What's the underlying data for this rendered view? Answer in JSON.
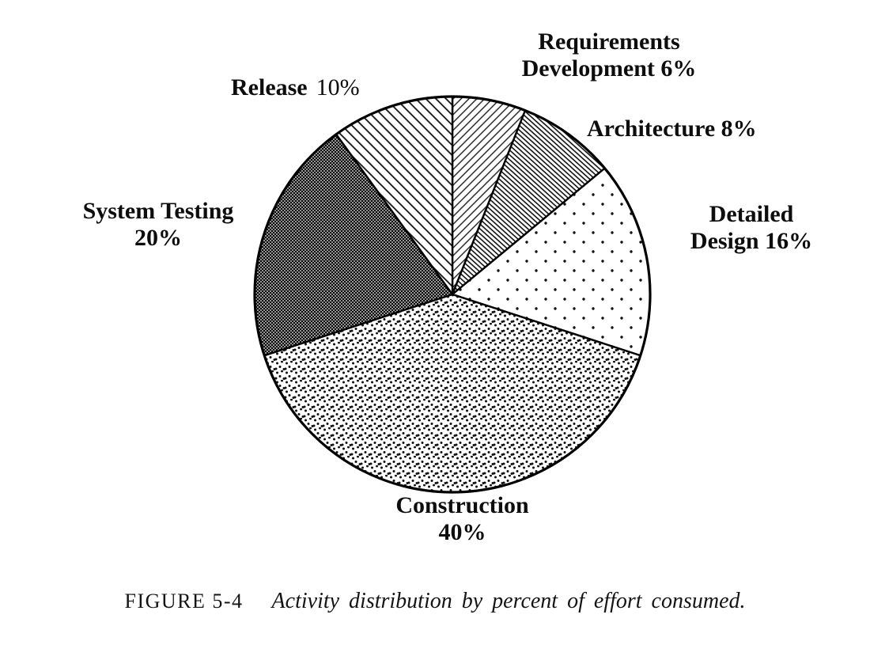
{
  "chart_data": {
    "type": "pie",
    "title": "Activity distribution by percent of effort consumed",
    "total": 100,
    "start_angle_deg": 0,
    "direction": "clockwise",
    "legend_position": "outside-labels",
    "segments": [
      {
        "label": "Requirements Development",
        "value": 6,
        "pattern": "diagonal-thin"
      },
      {
        "label": "Architecture",
        "value": 8,
        "pattern": "diagonal-dense"
      },
      {
        "label": "Detailed Design",
        "value": 16,
        "pattern": "dots-sparse"
      },
      {
        "label": "Construction",
        "value": 40,
        "pattern": "dots-dense"
      },
      {
        "label": "System Testing",
        "value": 20,
        "pattern": "crosshatch-dark"
      },
      {
        "label": "Release",
        "value": 10,
        "pattern": "diagonal-wide"
      }
    ]
  },
  "labels": {
    "requirements_line1": "Requirements",
    "requirements_line2": "Development 6%",
    "architecture": "Architecture 8%",
    "detailed_line1": "Detailed",
    "detailed_line2": "Design 16%",
    "construction_line1": "Construction",
    "construction_line2": "40%",
    "system_line1": "System Testing",
    "system_line2": "20%",
    "release_name": "Release",
    "release_value": "10%"
  },
  "caption": {
    "figure": "FIGURE 5-4",
    "text": "Activity distribution by percent of effort consumed."
  },
  "colors": {
    "ink": "#111111",
    "background": "#ffffff"
  }
}
